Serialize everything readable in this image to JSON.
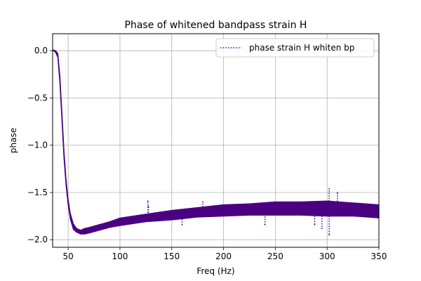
{
  "chart_data": {
    "type": "line",
    "title": "Phase of whitened bandpass strain H",
    "xlabel": "Freq (Hz)",
    "ylabel": "phase",
    "xlim": [
      35,
      350
    ],
    "ylim": [
      -2.08,
      0.18
    ],
    "xticks": [
      50,
      100,
      150,
      200,
      250,
      300,
      350
    ],
    "yticks": [
      0.0,
      -0.5,
      -1.0,
      -1.5,
      -2.0
    ],
    "xtick_labels": [
      "50",
      "100",
      "150",
      "200",
      "250",
      "300",
      "350"
    ],
    "ytick_labels": [
      "0.0",
      "−0.5",
      "−1.0",
      "−1.5",
      "−2.0"
    ],
    "grid": true,
    "legend_position": "top-right",
    "series": [
      {
        "name": "phase strain H whiten bp",
        "color": "#4b0082",
        "line_style": "dotted",
        "x": [
          35,
          38,
          40,
          42,
          44,
          46,
          48,
          50,
          52,
          55,
          58,
          62,
          66,
          70,
          80,
          90,
          100,
          125,
          150,
          175,
          200,
          225,
          250,
          275,
          300,
          325,
          350
        ],
        "y": [
          0.01,
          -0.01,
          -0.05,
          -0.3,
          -0.7,
          -1.1,
          -1.4,
          -1.6,
          -1.75,
          -1.86,
          -1.9,
          -1.92,
          -1.91,
          -1.9,
          -1.87,
          -1.84,
          -1.81,
          -1.77,
          -1.74,
          -1.71,
          -1.69,
          -1.68,
          -1.67,
          -1.67,
          -1.67,
          -1.68,
          -1.7
        ],
        "band_halfwidth": [
          0.0,
          0.01,
          0.02,
          0.04,
          0.04,
          0.04,
          0.03,
          0.03,
          0.03,
          0.03,
          0.02,
          0.02,
          0.03,
          0.03,
          0.03,
          0.03,
          0.04,
          0.04,
          0.05,
          0.05,
          0.06,
          0.06,
          0.07,
          0.07,
          0.08,
          0.07,
          0.07
        ],
        "outliers": [
          {
            "x": 127,
            "y": -1.59
          },
          {
            "x": 127.5,
            "y": -1.65
          },
          {
            "x": 160,
            "y": -1.84
          },
          {
            "x": 180,
            "y": -1.6
          },
          {
            "x": 240,
            "y": -1.84
          },
          {
            "x": 288,
            "y": -1.84
          },
          {
            "x": 295,
            "y": -1.88
          },
          {
            "x": 302,
            "y": -1.46
          },
          {
            "x": 302,
            "y": -1.95
          },
          {
            "x": 310,
            "y": -1.5
          }
        ]
      }
    ]
  }
}
